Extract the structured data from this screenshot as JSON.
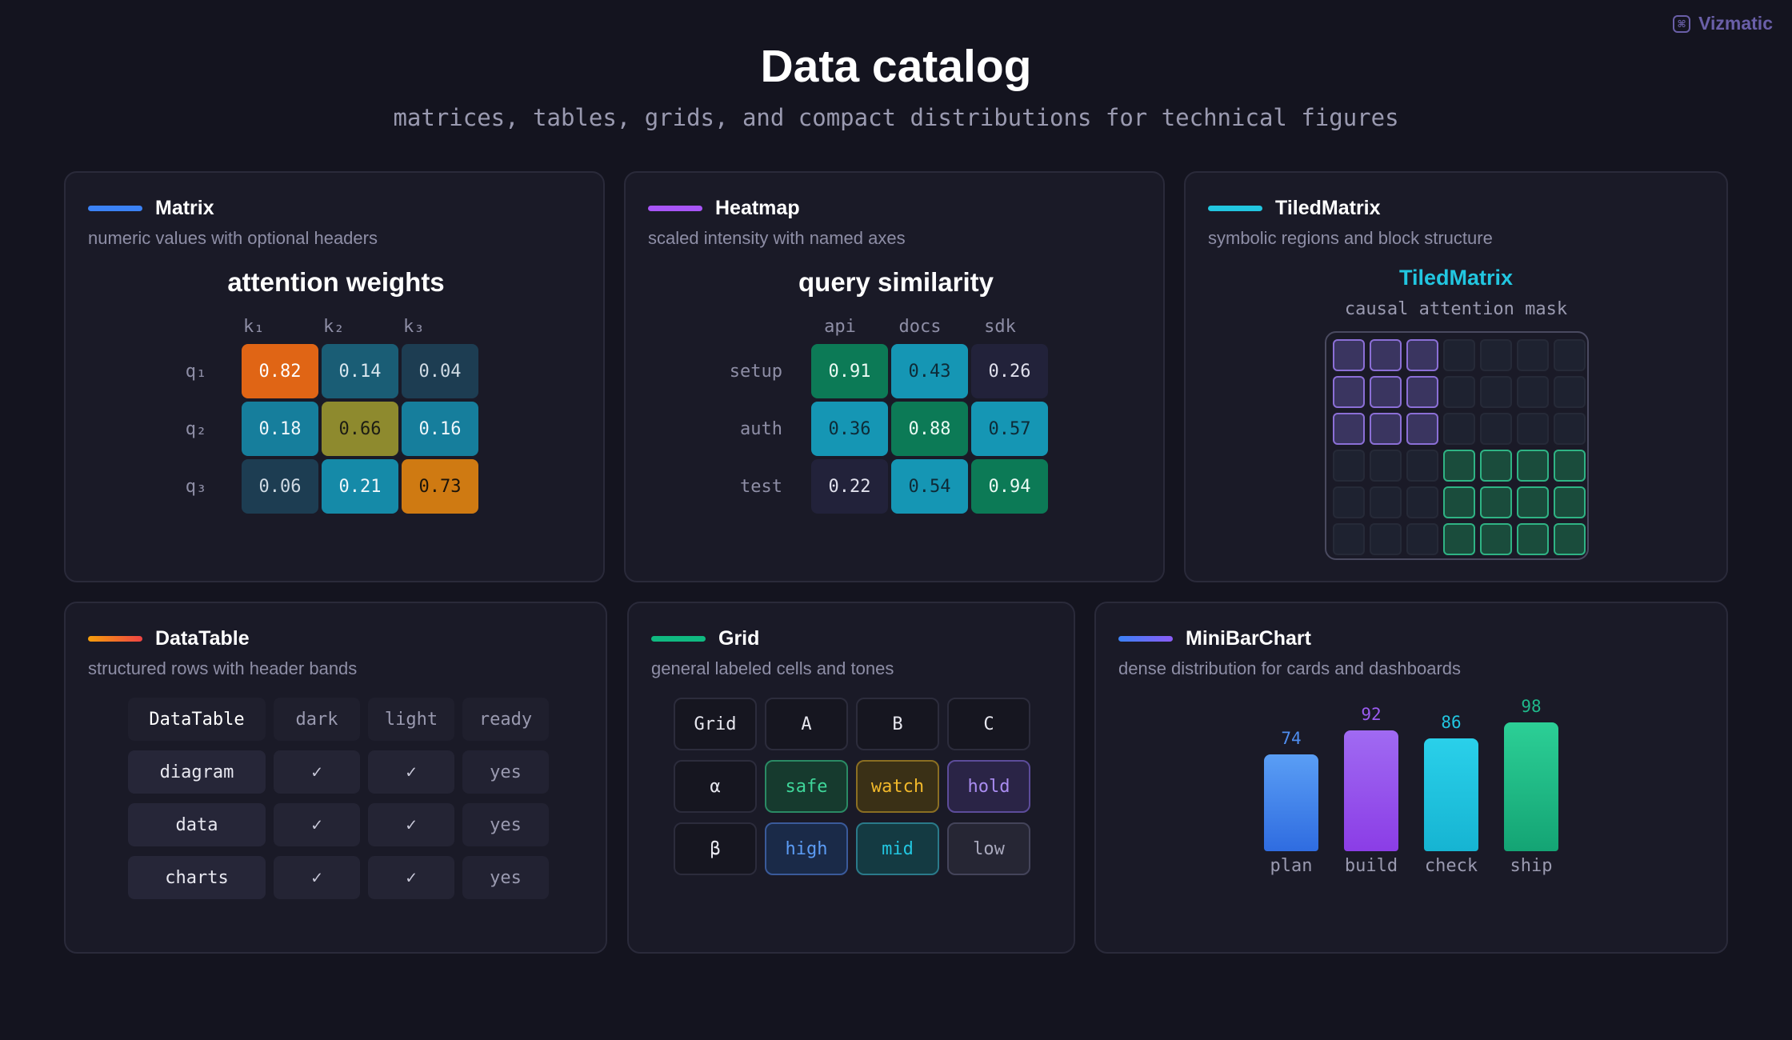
{
  "brand": {
    "name": "Vizmatic",
    "icon": "logo-icon"
  },
  "header": {
    "title": "Data catalog",
    "subtitle": "matrices, tables, grids, and compact distributions for technical figures"
  },
  "matrix": {
    "title": "Matrix",
    "desc": "numeric values with optional headers",
    "accent": "#3b82f6",
    "subtitle": "attention weights",
    "cols": [
      "k₁",
      "k₂",
      "k₃"
    ],
    "rows": [
      {
        "label": "q₁",
        "values": [
          "0.82",
          "0.14",
          "0.04"
        ]
      },
      {
        "label": "q₂",
        "values": [
          "0.18",
          "0.66",
          "0.16"
        ]
      },
      {
        "label": "q₃",
        "values": [
          "0.06",
          "0.21",
          "0.73"
        ]
      }
    ]
  },
  "heatmap": {
    "title": "Heatmap",
    "desc": "scaled intensity with named axes",
    "accent": "#a855f7",
    "subtitle": "query similarity",
    "cols": [
      "api",
      "docs",
      "sdk"
    ],
    "rows": [
      {
        "label": "setup",
        "values": [
          "0.91",
          "0.43",
          "0.26"
        ]
      },
      {
        "label": "auth",
        "values": [
          "0.36",
          "0.88",
          "0.57"
        ]
      },
      {
        "label": "test",
        "values": [
          "0.22",
          "0.54",
          "0.94"
        ]
      }
    ]
  },
  "tiled": {
    "title": "TiledMatrix",
    "desc": "symbolic regions and block structure",
    "accent": "#22c6e0",
    "inner_title": "TiledMatrix",
    "inner_sub": "causal attention mask"
  },
  "datatable": {
    "title": "DataTable",
    "desc": "structured rows with header bands",
    "accent": "#f97316",
    "headers": [
      "DataTable",
      "dark",
      "light",
      "ready"
    ],
    "rows": [
      [
        "diagram",
        "✓",
        "✓",
        "yes"
      ],
      [
        "data",
        "✓",
        "✓",
        "yes"
      ],
      [
        "charts",
        "✓",
        "✓",
        "yes"
      ]
    ]
  },
  "grid": {
    "title": "Grid",
    "desc": "general labeled cells and tones",
    "accent": "#10b981",
    "headers": [
      "Grid",
      "A",
      "B",
      "C"
    ],
    "rows": [
      [
        "α",
        "safe",
        "watch",
        "hold"
      ],
      [
        "β",
        "high",
        "mid",
        "low"
      ]
    ]
  },
  "minibar": {
    "title": "MiniBarChart",
    "desc": "dense distribution for cards and dashboards",
    "accent": "#6366f1"
  },
  "chart_data": {
    "type": "bar",
    "categories": [
      "plan",
      "build",
      "check",
      "ship"
    ],
    "values": [
      74,
      92,
      86,
      98
    ],
    "colors": [
      "#4f8ef0",
      "#9b5cf0",
      "#22c6e0",
      "#1fb88a"
    ],
    "ylim": [
      0,
      100
    ]
  }
}
